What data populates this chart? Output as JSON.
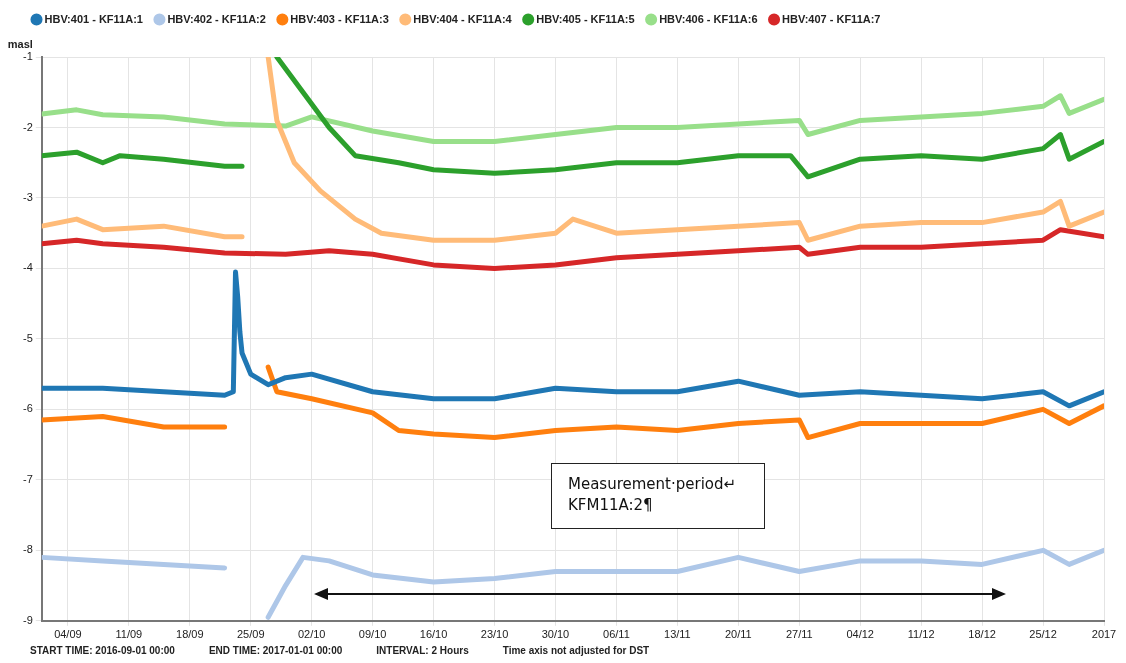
{
  "chart_data": {
    "type": "line",
    "ylabel": "masl",
    "xlim": [
      "2016-09-01",
      "2017-01-01"
    ],
    "xticks": [
      {
        "value": "2016-09-04",
        "label": "04/09"
      },
      {
        "value": "2016-09-11",
        "label": "11/09"
      },
      {
        "value": "2016-09-18",
        "label": "18/09"
      },
      {
        "value": "2016-09-25",
        "label": "25/09"
      },
      {
        "value": "2016-10-02",
        "label": "02/10"
      },
      {
        "value": "2016-10-09",
        "label": "09/10"
      },
      {
        "value": "2016-10-16",
        "label": "16/10"
      },
      {
        "value": "2016-10-23",
        "label": "23/10"
      },
      {
        "value": "2016-10-30",
        "label": "30/10"
      },
      {
        "value": "2016-11-06",
        "label": "06/11"
      },
      {
        "value": "2016-11-13",
        "label": "13/11"
      },
      {
        "value": "2016-11-20",
        "label": "20/11"
      },
      {
        "value": "2016-11-27",
        "label": "27/11"
      },
      {
        "value": "2016-12-04",
        "label": "04/12"
      },
      {
        "value": "2016-12-11",
        "label": "11/12"
      },
      {
        "value": "2016-12-18",
        "label": "18/12"
      },
      {
        "value": "2016-12-25",
        "label": "25/12"
      },
      {
        "value": "2017-01-01",
        "label": "2017"
      }
    ],
    "ylim": [
      -9,
      -1
    ],
    "yticks": [
      -9,
      -8,
      -7,
      -6,
      -5,
      -4,
      -3,
      -2,
      -1
    ],
    "grid": true,
    "legend": "top left",
    "marker": "none",
    "line_style": "solid",
    "annotations": [
      "START TIME: 2016-09-01 00:00",
      "END TIME: 2017-01-01 00:00",
      "INTERVAL: 2 Hours",
      "Time axis not adjusted for DST",
      "Measurement·period↵\nKFM11A:2¶"
    ],
    "series": [
      {
        "name": "HBV:401 - KF11A:1",
        "color": "#1f77b4",
        "x": [
          "2016-09-01",
          "2016-09-08",
          "2016-09-15",
          "2016-09-22",
          "2016-09-23",
          "2016-09-23T06:00",
          "2016-09-23T12:00",
          "2016-09-23T18:00",
          "2016-09-24T00:00",
          "2016-09-25",
          "2016-09-27",
          "2016-09-29",
          "2016-10-02",
          "2016-10-09",
          "2016-10-16",
          "2016-10-23",
          "2016-10-30",
          "2016-11-06",
          "2016-11-13",
          "2016-11-20",
          "2016-11-27",
          "2016-12-04",
          "2016-12-11",
          "2016-12-18",
          "2016-12-25",
          "2016-12-28",
          "2017-01-01"
        ],
        "values": [
          -5.7,
          -5.7,
          -5.75,
          -5.8,
          -5.75,
          -4.05,
          -4.4,
          -4.9,
          -5.2,
          -5.5,
          -5.65,
          -5.55,
          -5.5,
          -5.75,
          -5.85,
          -5.85,
          -5.7,
          -5.75,
          -5.75,
          -5.6,
          -5.8,
          -5.75,
          -5.8,
          -5.85,
          -5.75,
          -5.95,
          -5.75
        ]
      },
      {
        "name": "HBV:402 - KF11A:2",
        "color": "#aec7e8",
        "x": [
          "2016-09-01",
          "2016-09-08",
          "2016-09-15",
          "2016-09-22",
          "2016-09-25",
          "2016-09-27",
          "2016-09-29",
          "2016-10-01",
          "2016-10-04",
          "2016-10-09",
          "2016-10-16",
          "2016-10-23",
          "2016-10-30",
          "2016-11-06",
          "2016-11-13",
          "2016-11-20",
          "2016-11-27",
          "2016-12-04",
          "2016-12-11",
          "2016-12-18",
          "2016-12-25",
          "2016-12-28",
          "2017-01-01"
        ],
        "values": [
          -8.1,
          -8.15,
          -8.2,
          -8.25,
          null,
          -8.95,
          -8.5,
          -8.1,
          -8.15,
          -8.35,
          -8.45,
          -8.4,
          -8.3,
          -8.3,
          -8.3,
          -8.1,
          -8.3,
          -8.15,
          -8.15,
          -8.2,
          -8.0,
          -8.2,
          -8.0
        ]
      },
      {
        "name": "HBV:403 - KF11A:3",
        "color": "#ff7f0e",
        "x": [
          "2016-09-01",
          "2016-09-08",
          "2016-09-15",
          "2016-09-22",
          "2016-09-25",
          "2016-09-27",
          "2016-09-28",
          "2016-10-02",
          "2016-10-09",
          "2016-10-12",
          "2016-10-16",
          "2016-10-23",
          "2016-10-30",
          "2016-11-06",
          "2016-11-13",
          "2016-11-20",
          "2016-11-27",
          "2016-11-28",
          "2016-12-04",
          "2016-12-11",
          "2016-12-18",
          "2016-12-25",
          "2016-12-28",
          "2017-01-01"
        ],
        "values": [
          -6.15,
          -6.1,
          -6.25,
          -6.25,
          null,
          -5.4,
          -5.75,
          -5.85,
          -6.05,
          -6.3,
          -6.35,
          -6.4,
          -6.3,
          -6.25,
          -6.3,
          -6.2,
          -6.15,
          -6.4,
          -6.2,
          -6.2,
          -6.2,
          -6.0,
          -6.2,
          -5.95
        ]
      },
      {
        "name": "HBV:404 - KF11A:4",
        "color": "#ffbb78",
        "x": [
          "2016-09-01",
          "2016-09-05",
          "2016-09-08",
          "2016-09-15",
          "2016-09-22",
          "2016-09-24",
          "2016-09-25",
          "2016-09-27",
          "2016-09-28",
          "2016-09-30",
          "2016-10-03",
          "2016-10-07",
          "2016-10-10",
          "2016-10-16",
          "2016-10-23",
          "2016-10-30",
          "2016-11-01",
          "2016-11-06",
          "2016-11-13",
          "2016-11-20",
          "2016-11-27",
          "2016-11-28",
          "2016-12-04",
          "2016-12-11",
          "2016-12-18",
          "2016-12-25",
          "2016-12-27",
          "2016-12-28",
          "2017-01-01"
        ],
        "values": [
          -3.4,
          -3.3,
          -3.45,
          -3.4,
          -3.55,
          -3.55,
          null,
          -1.0,
          -1.9,
          -2.5,
          -2.9,
          -3.3,
          -3.5,
          -3.6,
          -3.6,
          -3.5,
          -3.3,
          -3.5,
          -3.45,
          -3.4,
          -3.35,
          -3.6,
          -3.4,
          -3.35,
          -3.35,
          -3.2,
          -3.05,
          -3.4,
          -3.2
        ]
      },
      {
        "name": "HBV:405 - KF11A:5",
        "color": "#2ca02c",
        "x": [
          "2016-09-01",
          "2016-09-05",
          "2016-09-08",
          "2016-09-10",
          "2016-09-15",
          "2016-09-22",
          "2016-09-24",
          "2016-09-25",
          "2016-09-28",
          "2016-10-01",
          "2016-10-04",
          "2016-10-07",
          "2016-10-12",
          "2016-10-16",
          "2016-10-23",
          "2016-10-30",
          "2016-11-06",
          "2016-11-13",
          "2016-11-20",
          "2016-11-26",
          "2016-11-28",
          "2016-12-04",
          "2016-12-11",
          "2016-12-18",
          "2016-12-25",
          "2016-12-27",
          "2016-12-28",
          "2017-01-01"
        ],
        "values": [
          -2.4,
          -2.35,
          -2.5,
          -2.4,
          -2.45,
          -2.55,
          -2.55,
          null,
          -1.0,
          -1.5,
          -2.0,
          -2.4,
          -2.5,
          -2.6,
          -2.65,
          -2.6,
          -2.5,
          -2.5,
          -2.4,
          -2.4,
          -2.7,
          -2.45,
          -2.4,
          -2.45,
          -2.3,
          -2.1,
          -2.45,
          -2.2
        ]
      },
      {
        "name": "HBV:406 - KF11A:6",
        "color": "#98df8a",
        "x": [
          "2016-09-01",
          "2016-09-05",
          "2016-09-08",
          "2016-09-15",
          "2016-09-22",
          "2016-09-29",
          "2016-10-02",
          "2016-10-09",
          "2016-10-16",
          "2016-10-23",
          "2016-10-30",
          "2016-11-06",
          "2016-11-13",
          "2016-11-20",
          "2016-11-27",
          "2016-11-28",
          "2016-12-04",
          "2016-12-11",
          "2016-12-18",
          "2016-12-25",
          "2016-12-27",
          "2016-12-28",
          "2017-01-01"
        ],
        "values": [
          -1.81,
          -1.75,
          -1.82,
          -1.85,
          -1.95,
          -1.98,
          -1.85,
          -2.05,
          -2.2,
          -2.2,
          -2.1,
          -2.0,
          -2.0,
          -1.95,
          -1.9,
          -2.1,
          -1.9,
          -1.85,
          -1.8,
          -1.7,
          -1.55,
          -1.8,
          -1.6
        ]
      },
      {
        "name": "HBV:407 - KF11A:7",
        "color": "#d62728",
        "x": [
          "2016-09-01",
          "2016-09-05",
          "2016-09-08",
          "2016-09-15",
          "2016-09-22",
          "2016-09-29",
          "2016-10-04",
          "2016-10-09",
          "2016-10-16",
          "2016-10-23",
          "2016-10-30",
          "2016-11-06",
          "2016-11-13",
          "2016-11-20",
          "2016-11-27",
          "2016-11-28",
          "2016-12-04",
          "2016-12-11",
          "2016-12-18",
          "2016-12-25",
          "2016-12-27",
          "2017-01-01"
        ],
        "values": [
          -3.65,
          -3.6,
          -3.65,
          -3.7,
          -3.78,
          -3.8,
          -3.75,
          -3.8,
          -3.95,
          -4.0,
          -3.95,
          -3.85,
          -3.8,
          -3.75,
          -3.7,
          -3.8,
          -3.7,
          -3.7,
          -3.65,
          -3.6,
          -3.45,
          -3.55
        ]
      }
    ]
  }
}
